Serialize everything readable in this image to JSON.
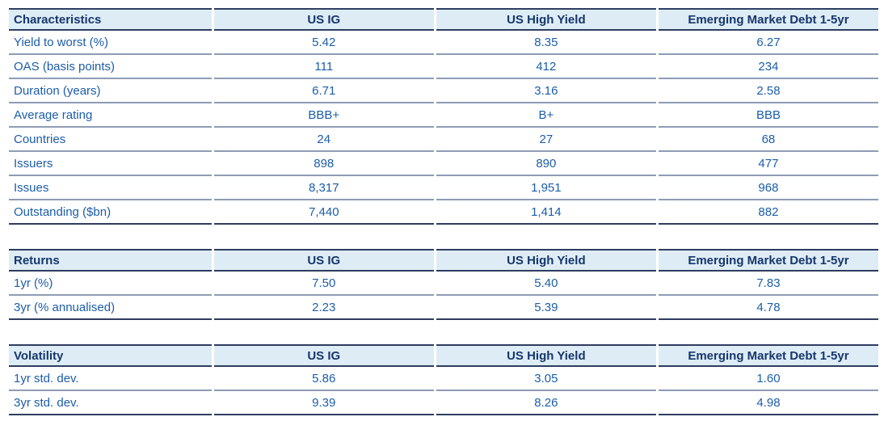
{
  "colors": {
    "header_bg": "#deedf5",
    "header_text": "#16366d",
    "body_text": "#1c5da9",
    "strong_line": "#2e3d60",
    "row_line": "#8d9cb4"
  },
  "chart_data": [
    {
      "type": "table",
      "title": "Characteristics",
      "columns": [
        "US IG",
        "US High Yield",
        "Emerging Market Debt 1-5yr"
      ],
      "rows": [
        {
          "label": "Yield to worst (%)",
          "values": [
            "5.42",
            "8.35",
            "6.27"
          ]
        },
        {
          "label": "OAS (basis points)",
          "values": [
            "111",
            "412",
            "234"
          ]
        },
        {
          "label": "Duration (years)",
          "values": [
            "6.71",
            "3.16",
            "2.58"
          ]
        },
        {
          "label": "Average rating",
          "values": [
            "BBB+",
            "B+",
            "BBB"
          ]
        },
        {
          "label": "Countries",
          "values": [
            "24",
            "27",
            "68"
          ]
        },
        {
          "label": "Issuers",
          "values": [
            "898",
            "890",
            "477"
          ]
        },
        {
          "label": "Issues",
          "values": [
            "8,317",
            "1,951",
            "968"
          ]
        },
        {
          "label": "Outstanding ($bn)",
          "values": [
            "7,440",
            "1,414",
            "882"
          ]
        }
      ]
    },
    {
      "type": "table",
      "title": "Returns",
      "columns": [
        "US IG",
        "US High Yield",
        "Emerging Market Debt 1-5yr"
      ],
      "rows": [
        {
          "label": "1yr (%)",
          "values": [
            "7.50",
            "5.40",
            "7.83"
          ]
        },
        {
          "label": "3yr (% annualised)",
          "values": [
            "2.23",
            "5.39",
            "4.78"
          ]
        }
      ]
    },
    {
      "type": "table",
      "title": "Volatility",
      "columns": [
        "US IG",
        "US High Yield",
        "Emerging Market Debt 1-5yr"
      ],
      "rows": [
        {
          "label": "1yr std. dev.",
          "values": [
            "5.86",
            "3.05",
            "1.60"
          ]
        },
        {
          "label": "3yr std. dev.",
          "values": [
            "9.39",
            "8.26",
            "4.98"
          ]
        }
      ]
    }
  ]
}
